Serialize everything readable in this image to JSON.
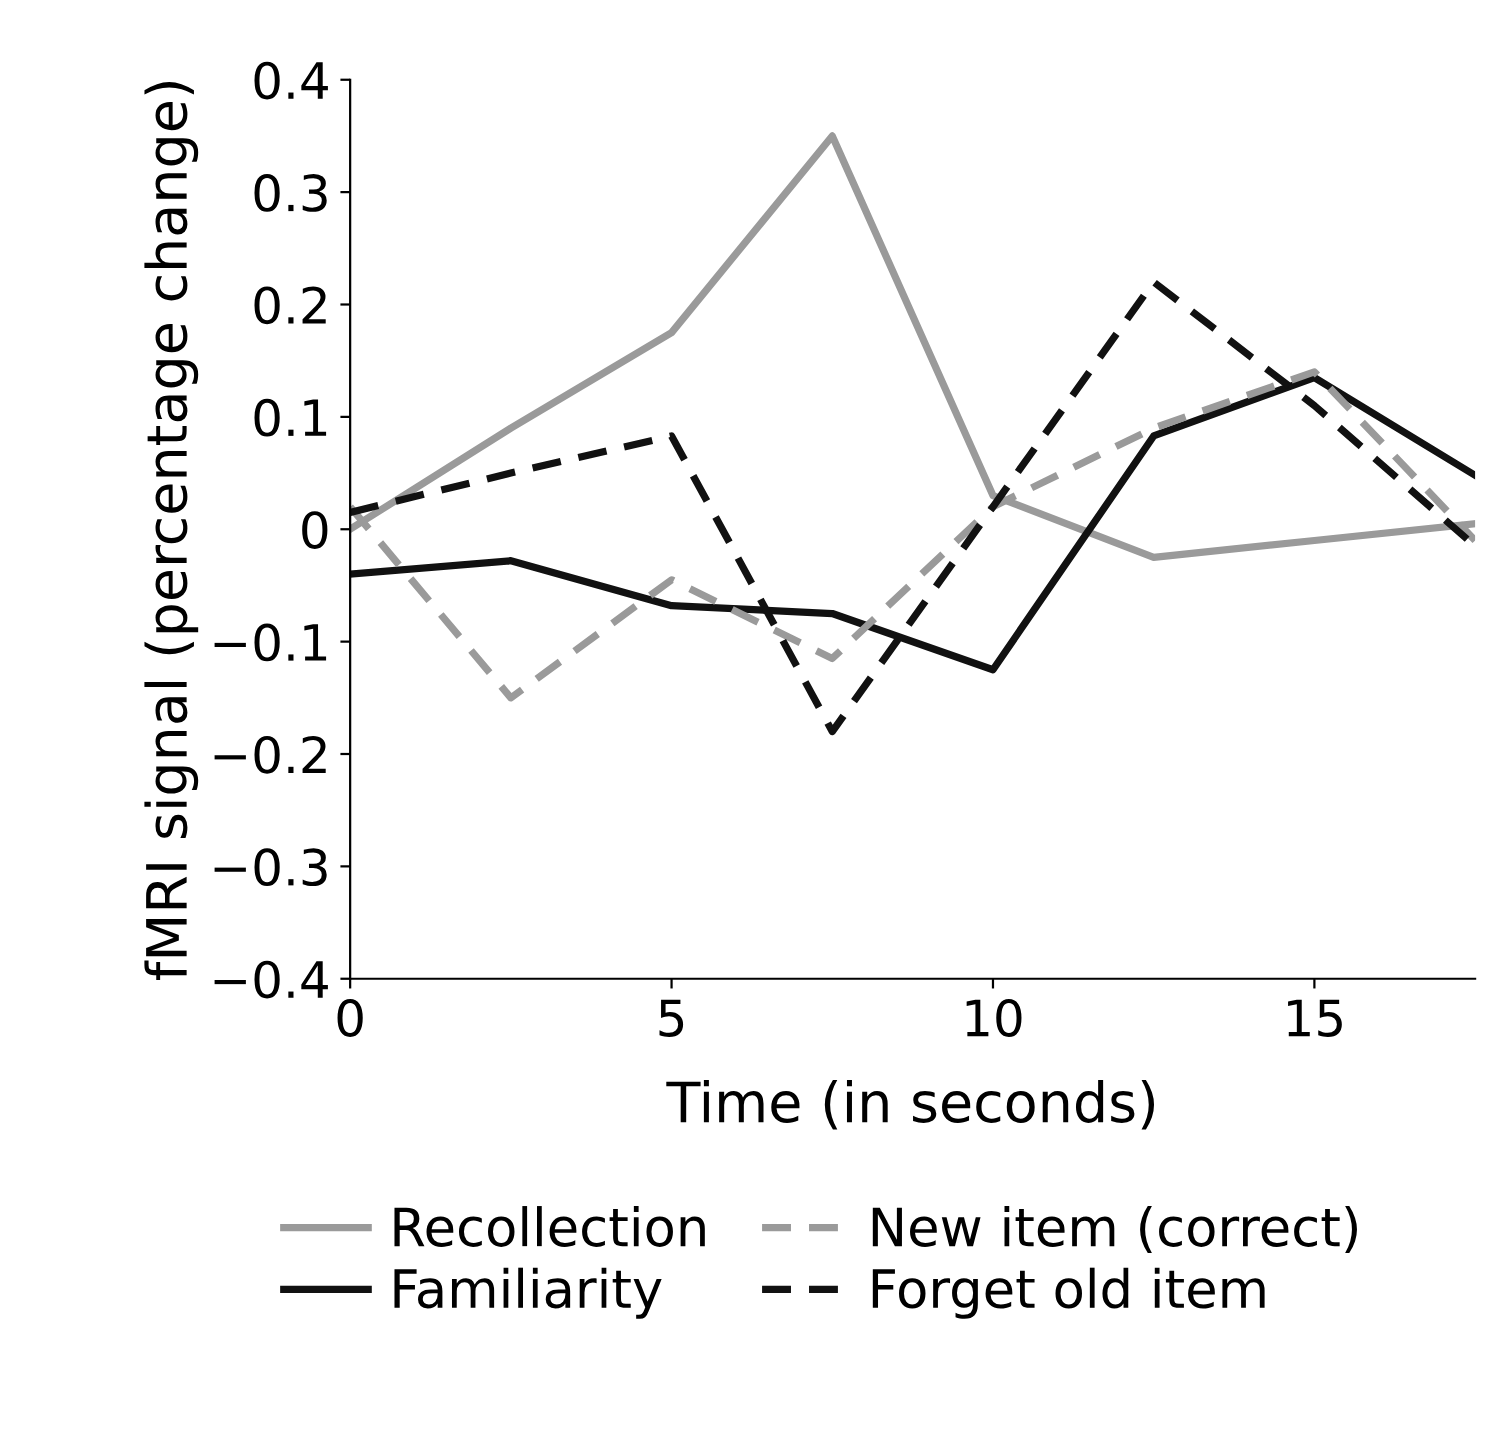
{
  "chart_data": {
    "type": "line",
    "xlabel": "Time (in seconds)",
    "ylabel": "fMRI signal (percentage change)",
    "x": [
      0,
      2.5,
      5,
      7.5,
      10,
      12.5,
      15,
      17.5
    ],
    "series": [
      {
        "name": "Recollection",
        "color": "#9a9a9a",
        "line_style": "solid",
        "values": [
          0.0,
          0.09,
          0.175,
          0.35,
          0.03,
          -0.025,
          -0.01,
          0.005
        ]
      },
      {
        "name": "Familiarity",
        "color": "#111111",
        "line_style": "solid",
        "values": [
          -0.04,
          -0.028,
          -0.068,
          -0.075,
          -0.125,
          0.083,
          0.135,
          0.048
        ]
      },
      {
        "name": "New item (correct)",
        "color": "#9a9a9a",
        "line_style": "dashed",
        "values": [
          0.02,
          -0.15,
          -0.045,
          -0.115,
          0.02,
          0.09,
          0.14,
          -0.01
        ]
      },
      {
        "name": "Forget old item",
        "color": "#111111",
        "line_style": "dashed",
        "values": [
          0.015,
          0.05,
          0.083,
          -0.18,
          0.02,
          0.22,
          0.11,
          -0.015
        ]
      }
    ],
    "xlim": [
      0,
      17.5
    ],
    "xticks": [
      0,
      5,
      10,
      15
    ],
    "ylim": [
      -0.4,
      0.4
    ],
    "yticks": [
      {
        "value": -0.4,
        "label": "−0.4"
      },
      {
        "value": -0.3,
        "label": "−0.3"
      },
      {
        "value": -0.2,
        "label": "−0.2"
      },
      {
        "value": -0.1,
        "label": "−0.1"
      },
      0,
      0.1,
      0.2,
      0.3,
      0.4
    ],
    "grid": false,
    "legend": "bottom",
    "marker": "none"
  }
}
